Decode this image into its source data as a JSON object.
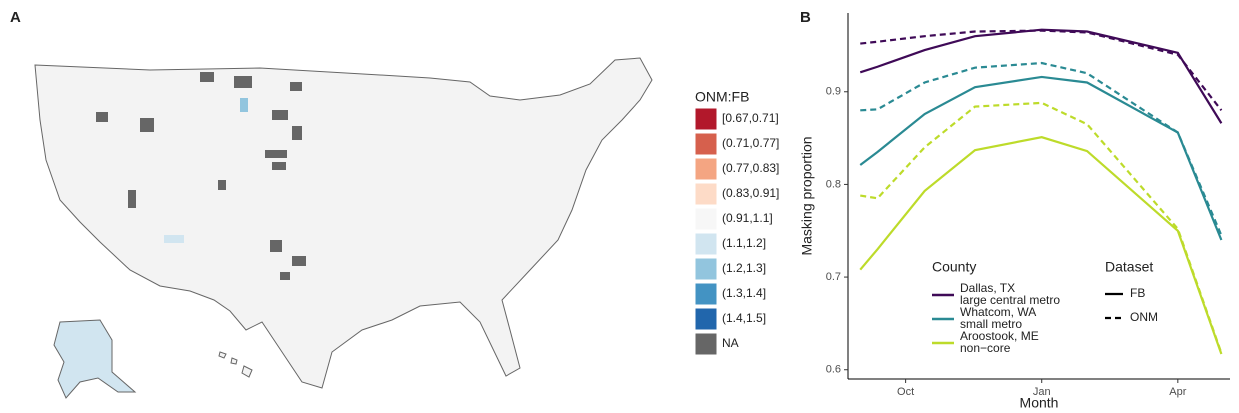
{
  "panel_labels": [
    "A",
    "B"
  ],
  "chart_data": [
    {
      "type": "map",
      "legend_title": "ONM:FB",
      "categories": [
        "[0.67,0.71]",
        "(0.71,0.77]",
        "(0.77,0.83]",
        "(0.83,0.91]",
        "(0.91,1.1]",
        "(1.1,1.2]",
        "(1.2,1.3]",
        "(1.3,1.4]",
        "(1.4,1.5]",
        "NA"
      ],
      "colors": [
        "#b2182b",
        "#d6604d",
        "#f4a582",
        "#fddbc7",
        "#f7f7f7",
        "#d1e5f0",
        "#92c5de",
        "#4393c3",
        "#2166ac",
        "#666666"
      ]
    },
    {
      "type": "line",
      "xlabel": "Month",
      "ylabel": "Masking proportion",
      "x": [
        9.0,
        9.38,
        10.42,
        11.53,
        13.0,
        14.0,
        16.0,
        16.96
      ],
      "xlim": [
        8.73,
        17.15
      ],
      "xticks": [
        {
          "value": 10,
          "label": "Oct"
        },
        {
          "value": 13,
          "label": "Jan"
        },
        {
          "value": 16,
          "label": "Apr"
        }
      ],
      "ylim": [
        0.59,
        0.985
      ],
      "yticks": [
        0.6,
        0.7,
        0.8,
        0.9
      ],
      "county_legend": {
        "title": "County",
        "entries": [
          {
            "name": "Dallas, TX",
            "class": "large central metro",
            "color": "#3f0a57"
          },
          {
            "name": "Whatcom, WA",
            "class": "small metro",
            "color": "#2a8a93"
          },
          {
            "name": "Aroostook, ME",
            "class": "non−core",
            "color": "#bddb2a"
          }
        ]
      },
      "dataset_legend": {
        "title": "Dataset",
        "entries": [
          {
            "name": "FB",
            "dash": "solid"
          },
          {
            "name": "ONM",
            "dash": "dashed"
          }
        ]
      },
      "series": [
        {
          "county": 0,
          "dataset": 0,
          "values": [
            0.921,
            0.927,
            0.945,
            0.96,
            0.967,
            0.965,
            0.942,
            0.866
          ]
        },
        {
          "county": 0,
          "dataset": 1,
          "values": [
            0.952,
            0.954,
            0.96,
            0.965,
            0.966,
            0.964,
            0.94,
            0.88
          ]
        },
        {
          "county": 1,
          "dataset": 0,
          "values": [
            0.821,
            0.835,
            0.876,
            0.905,
            0.916,
            0.91,
            0.856,
            0.74
          ]
        },
        {
          "county": 1,
          "dataset": 1,
          "values": [
            0.88,
            0.881,
            0.91,
            0.926,
            0.931,
            0.92,
            0.856,
            0.745
          ]
        },
        {
          "county": 2,
          "dataset": 0,
          "values": [
            0.708,
            0.73,
            0.793,
            0.837,
            0.851,
            0.836,
            0.75,
            0.617
          ]
        },
        {
          "county": 2,
          "dataset": 1,
          "values": [
            0.788,
            0.785,
            0.84,
            0.884,
            0.888,
            0.865,
            0.752,
            0.618
          ]
        }
      ]
    }
  ]
}
